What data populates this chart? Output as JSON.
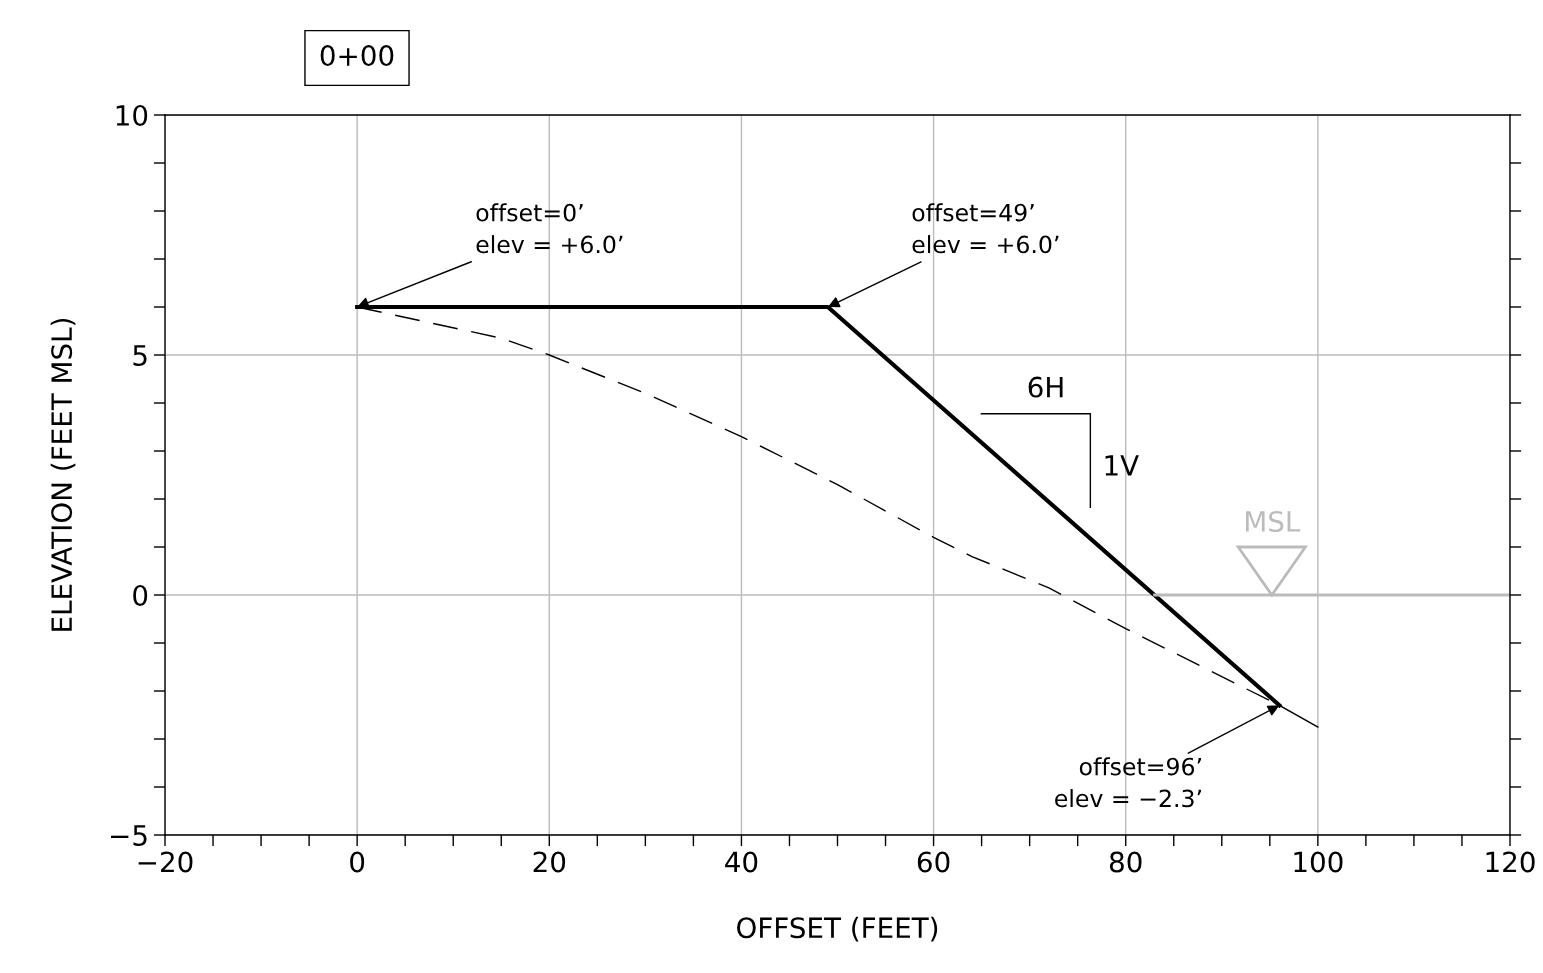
{
  "chart_data": {
    "type": "line",
    "title": "0+00",
    "xlabel": "OFFSET (FEET)",
    "ylabel": "ELEVATION (FEET MSL)",
    "series": [
      {
        "color": "#000000",
        "x": [
          0,
          49,
          96
        ],
        "values": [
          6.0,
          6.0,
          -2.3
        ],
        "line_style": "solid"
      },
      {
        "color": "#000000",
        "x": [
          0,
          15,
          20,
          30,
          40,
          50,
          60,
          64,
          72,
          80,
          96
        ],
        "values": [
          6.0,
          5.35,
          5.0,
          4.2,
          3.3,
          2.3,
          1.2,
          0.8,
          0.15,
          -0.7,
          -2.3
        ],
        "line_style": "dashed"
      },
      {
        "color": "#000000",
        "x": [
          96,
          100
        ],
        "values": [
          -2.3,
          -2.75
        ],
        "line_style": "solid"
      },
      {
        "name": "MSL",
        "color": "#bbbbbb",
        "x": [
          83,
          120
        ],
        "values": [
          0,
          0
        ],
        "line_style": "solid"
      }
    ],
    "xlim": [
      -20,
      120
    ],
    "xticks": [
      {
        "value": -20,
        "label": "−20"
      },
      {
        "value": -15,
        "label": null
      },
      {
        "value": -10,
        "label": null
      },
      {
        "value": -5,
        "label": null
      },
      0,
      {
        "value": 5,
        "label": null
      },
      {
        "value": 10,
        "label": null
      },
      {
        "value": 15,
        "label": null
      },
      20,
      {
        "value": 25,
        "label": null
      },
      {
        "value": 30,
        "label": null
      },
      {
        "value": 35,
        "label": null
      },
      40,
      {
        "value": 45,
        "label": null
      },
      {
        "value": 50,
        "label": null
      },
      {
        "value": 55,
        "label": null
      },
      60,
      {
        "value": 65,
        "label": null
      },
      {
        "value": 70,
        "label": null
      },
      {
        "value": 75,
        "label": null
      },
      80,
      {
        "value": 85,
        "label": null
      },
      {
        "value": 90,
        "label": null
      },
      {
        "value": 95,
        "label": null
      },
      100,
      {
        "value": 105,
        "label": null
      },
      {
        "value": 110,
        "label": null
      },
      {
        "value": 115,
        "label": null
      },
      120
    ],
    "ylim": [
      -5,
      10
    ],
    "yticks": [
      {
        "value": -5,
        "label": "−5"
      },
      {
        "value": -4,
        "label": null
      },
      {
        "value": -3,
        "label": null
      },
      {
        "value": -2,
        "label": null
      },
      {
        "value": -1,
        "label": null
      },
      0,
      {
        "value": 1,
        "label": null
      },
      {
        "value": 2,
        "label": null
      },
      {
        "value": 3,
        "label": null
      },
      {
        "value": 4,
        "label": null
      },
      5,
      {
        "value": 6,
        "label": null
      },
      {
        "value": 7,
        "label": null
      },
      {
        "value": 8,
        "label": null
      },
      {
        "value": 9,
        "label": null
      },
      10
    ],
    "grid": true,
    "legend": false,
    "marker": "none",
    "annotations": [
      {
        "text": "offset=0’\nelev = +6.0’",
        "x": 0,
        "y": 6.0
      },
      {
        "text": "offset=49’\nelev = +6.0’",
        "x": 49,
        "y": 6.0
      },
      {
        "text": "offset=96’\nelev = −2.3’",
        "x": 96,
        "y": -2.3
      },
      "6H",
      "1V"
    ]
  }
}
